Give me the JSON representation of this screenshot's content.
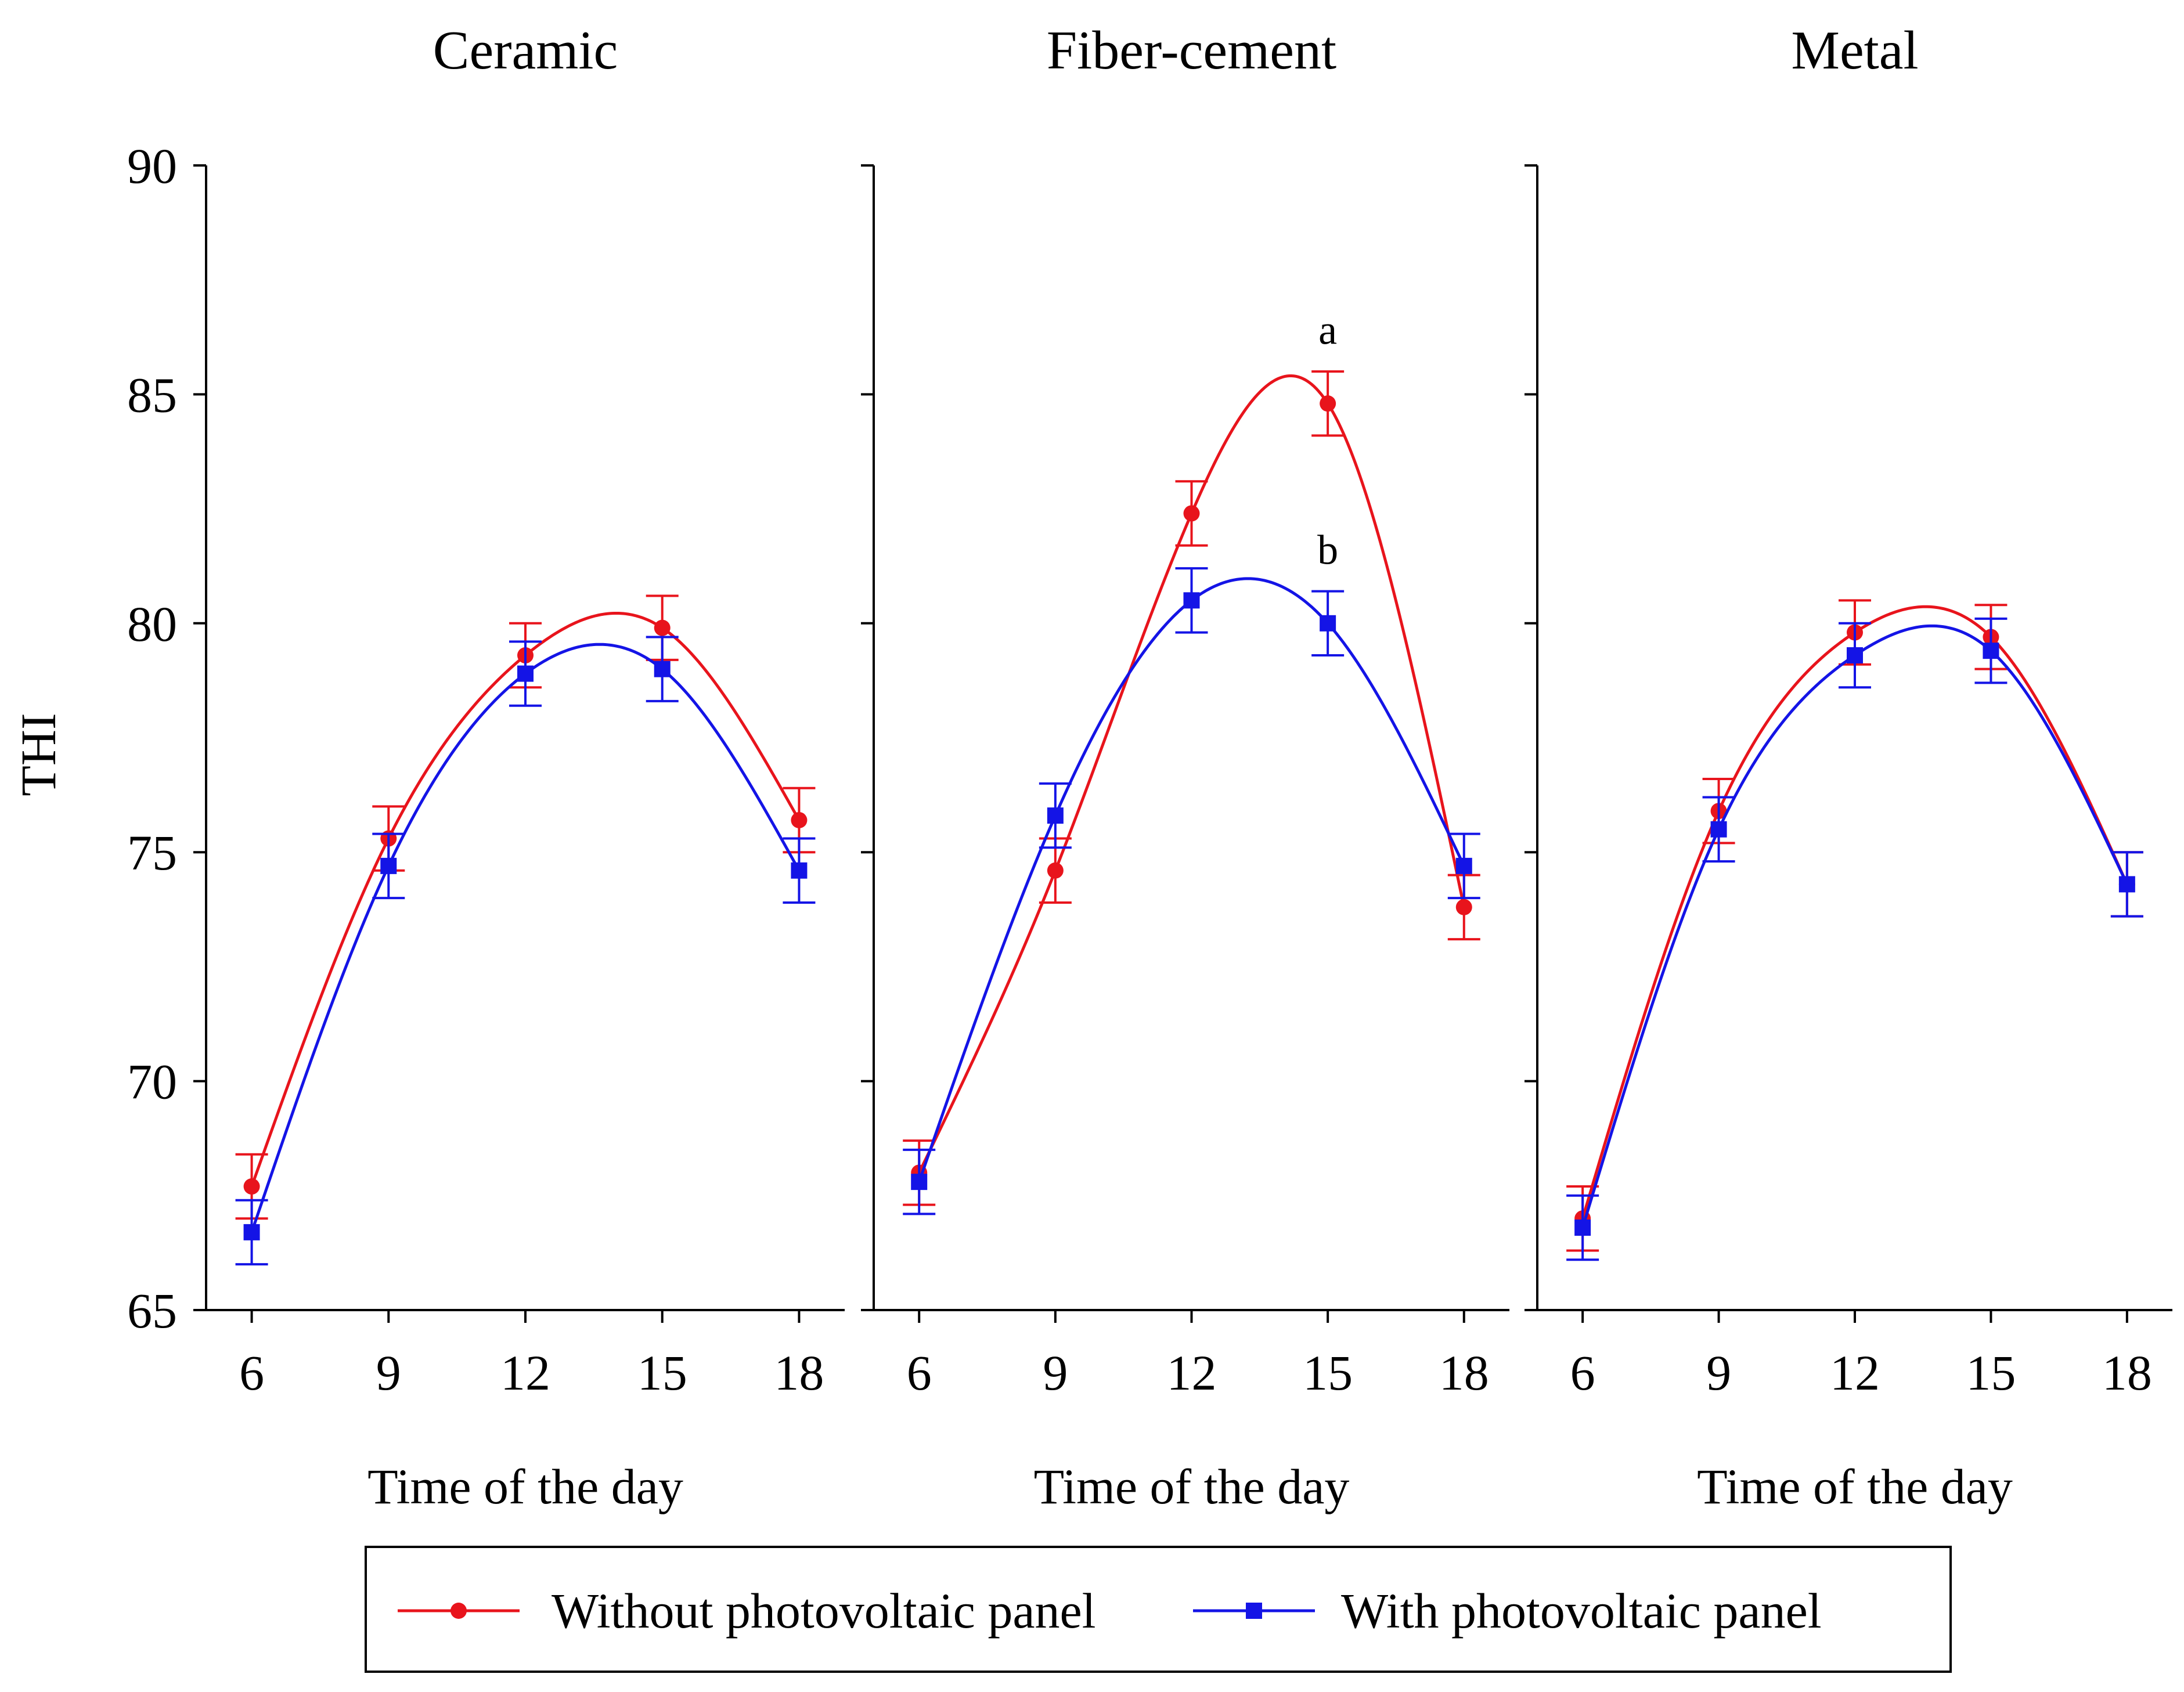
{
  "chart_data": {
    "type": "line",
    "ylabel": "THI",
    "xlabel": "Time of the day",
    "ylim": [
      65,
      90
    ],
    "yticks": [
      65,
      70,
      75,
      80,
      85,
      90
    ],
    "xticks": [
      6,
      9,
      12,
      15,
      18
    ],
    "xlim": [
      5,
      19
    ],
    "legend": {
      "placement": "bottom-center",
      "entries": [
        "Without photovoltaic panel",
        "With photovoltaic panel"
      ]
    },
    "colors": {
      "without": "#e8141c",
      "with": "#1414e6"
    },
    "panels": [
      {
        "title": "Ceramic",
        "series": [
          {
            "name": "Without photovoltaic panel",
            "x": [
              6,
              9,
              12,
              15,
              18
            ],
            "values": [
              67.7,
              75.3,
              79.3,
              79.9,
              75.7
            ],
            "errors": [
              0.7,
              0.7,
              0.7,
              0.7,
              0.7
            ]
          },
          {
            "name": "With photovoltaic panel",
            "x": [
              6,
              9,
              12,
              15,
              18
            ],
            "values": [
              66.7,
              74.7,
              78.9,
              79.0,
              74.6
            ],
            "errors": [
              0.7,
              0.7,
              0.7,
              0.7,
              0.7
            ]
          }
        ],
        "annotations": []
      },
      {
        "title": "Fiber-cement",
        "series": [
          {
            "name": "Without photovoltaic panel",
            "x": [
              6,
              9,
              12,
              15,
              18
            ],
            "values": [
              68.0,
              74.6,
              82.4,
              84.8,
              73.8
            ],
            "errors": [
              0.7,
              0.7,
              0.7,
              0.7,
              0.7
            ]
          },
          {
            "name": "With photovoltaic panel",
            "x": [
              6,
              9,
              12,
              15,
              18
            ],
            "values": [
              67.8,
              75.8,
              80.5,
              80.0,
              74.7
            ],
            "errors": [
              0.7,
              0.7,
              0.7,
              0.7,
              0.7
            ]
          }
        ],
        "annotations": [
          {
            "text": "a",
            "x": 15,
            "y": 86.1
          },
          {
            "text": "b",
            "x": 15,
            "y": 81.3
          }
        ]
      },
      {
        "title": "Metal",
        "series": [
          {
            "name": "Without photovoltaic panel",
            "x": [
              6,
              9,
              12,
              15,
              18
            ],
            "values": [
              67.0,
              75.9,
              79.8,
              79.7,
              74.3
            ],
            "errors": [
              0.7,
              0.7,
              0.7,
              0.7,
              0.7
            ]
          },
          {
            "name": "With photovoltaic panel",
            "x": [
              6,
              9,
              12,
              15,
              18
            ],
            "values": [
              66.8,
              75.5,
              79.3,
              79.4,
              74.3
            ],
            "errors": [
              0.7,
              0.7,
              0.7,
              0.7,
              0.7
            ]
          }
        ],
        "annotations": []
      }
    ]
  }
}
